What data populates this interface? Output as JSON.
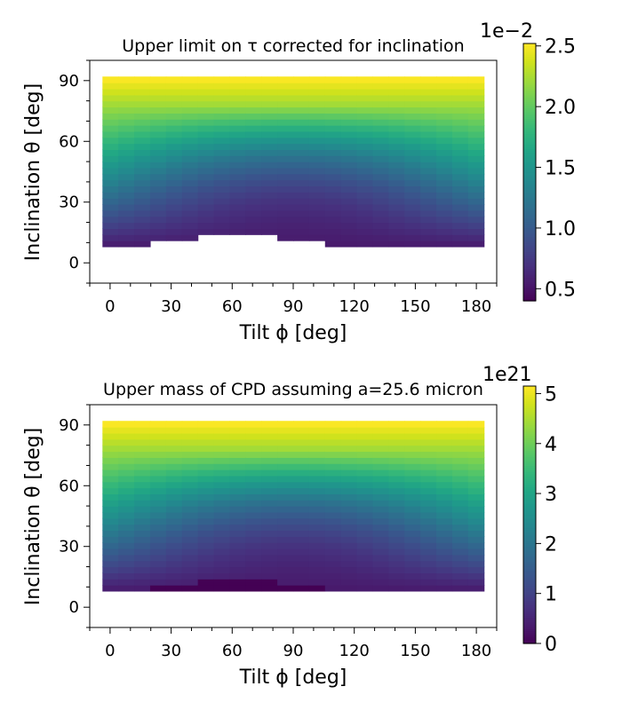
{
  "chart_data": [
    {
      "type": "heatmap",
      "title": "Upper limit on τ corrected for inclination",
      "xlabel": "Tilt ϕ [deg]",
      "ylabel": "Inclination θ [deg]",
      "xlim": [
        -10,
        190
      ],
      "ylim": [
        -10,
        100
      ],
      "xticks": [
        0,
        30,
        60,
        90,
        120,
        150,
        180
      ],
      "yticks": [
        0,
        30,
        60,
        90
      ],
      "x_range": [
        -3.75,
        183.75
      ],
      "y_range": [
        8,
        92
      ],
      "colormap": "viridis",
      "colorbar": {
        "min": 0.004,
        "max": 0.0252,
        "ticks": [
          0.005,
          0.01,
          0.015,
          0.02,
          0.025
        ],
        "tick_labels": [
          "0.5",
          "1.0",
          "1.5",
          "2.0",
          "2.5"
        ],
        "offset_label": "1e−2"
      },
      "value_model": {
        "description": "value ≈ vmin + (vmax − vmin) × shading of inclination and tilt; blank cells near θ≈10–15° for ϕ≈22–107°",
        "vmin": 0.004,
        "vmax": 0.0252,
        "missing_regions": [
          {
            "phi": [
              22,
              45
            ],
            "theta": [
              8,
              11
            ]
          },
          {
            "phi": [
              45,
              86
            ],
            "theta": [
              8,
              15
            ]
          },
          {
            "phi": [
              86,
              107
            ],
            "theta": [
              8,
              11
            ]
          }
        ]
      }
    },
    {
      "type": "heatmap",
      "title": "Upper mass of CPD assuming a=25.6 micron",
      "xlabel": "Tilt ϕ [deg]",
      "ylabel": "Inclination θ [deg]",
      "xlim": [
        -10,
        190
      ],
      "ylim": [
        -10,
        100
      ],
      "xticks": [
        0,
        30,
        60,
        90,
        120,
        150,
        180
      ],
      "yticks": [
        0,
        30,
        60,
        90
      ],
      "x_range": [
        -3.75,
        183.75
      ],
      "y_range": [
        8,
        92
      ],
      "colormap": "viridis",
      "colorbar": {
        "min": 0,
        "max": 5.15e+21,
        "ticks": [
          0,
          1e+21,
          2e+21,
          3e+21,
          4e+21,
          5e+21
        ],
        "tick_labels": [
          "0",
          "1",
          "2",
          "3",
          "4",
          "5"
        ],
        "offset_label": "1e21"
      },
      "value_model": {
        "description": "same spatial pattern as top panel; lowest cells (≈0) near θ≈10–15° for ϕ≈22–107°",
        "vmin": 0,
        "vmax": 5.15e+21
      }
    }
  ],
  "panels": {
    "top": {
      "title": "Upper limit on τ corrected for inclination",
      "xlabel": "Tilt ϕ [deg]",
      "ylabel": "Inclination θ [deg]",
      "offset": "1e−2"
    },
    "bottom": {
      "title": "Upper mass of CPD assuming a=25.6 micron",
      "xlabel": "Tilt ϕ [deg]",
      "ylabel": "Inclination θ [deg]",
      "offset": "1e21"
    }
  }
}
